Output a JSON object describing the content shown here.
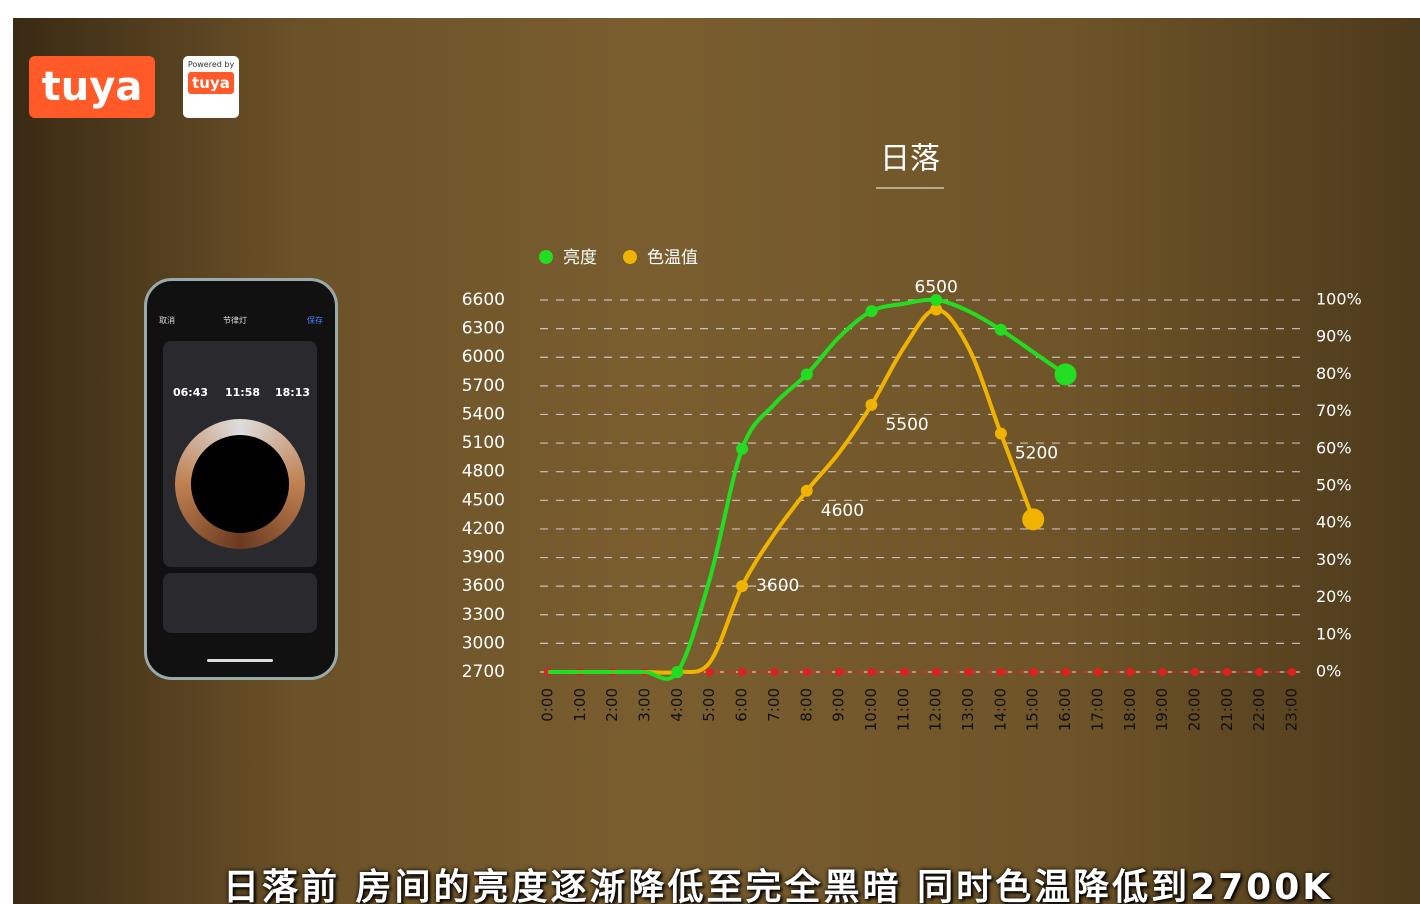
{
  "chart_data": {
    "type": "line",
    "title": "日落",
    "categories": [
      "0:00",
      "1:00",
      "2:00",
      "3:00",
      "4:00",
      "5:00",
      "6:00",
      "7:00",
      "8:00",
      "9:00",
      "10:00",
      "11:00",
      "12:00",
      "13:00",
      "14:00",
      "15:00",
      "16:00",
      "17:00",
      "18:00",
      "19:00",
      "20:00",
      "21:00",
      "22:00",
      "23:00"
    ],
    "series": [
      {
        "name": "亮度",
        "color": "#22dd22",
        "axis": "y2",
        "values": [
          0,
          0,
          0,
          0,
          0,
          25,
          60,
          72,
          80,
          90,
          97,
          99,
          100,
          97,
          92,
          86,
          80,
          null,
          null,
          null,
          null,
          null,
          null,
          null
        ]
      },
      {
        "name": "色温值",
        "color": "#f0b400",
        "values": [
          2700,
          2700,
          2700,
          2700,
          2700,
          2800,
          3600,
          4150,
          4600,
          5000,
          5500,
          6100,
          6500,
          6100,
          5200,
          4300,
          null,
          null,
          null,
          null,
          null,
          null,
          null,
          null
        ],
        "value_labels": [
          null,
          null,
          null,
          null,
          null,
          null,
          "3600",
          null,
          "4600",
          null,
          "5500",
          null,
          "6500",
          null,
          "5200",
          null,
          null,
          null,
          null,
          null,
          null,
          null,
          null,
          null
        ]
      }
    ],
    "ylim": [
      2700,
      6600
    ],
    "yticks": [
      2700,
      3000,
      3300,
      3600,
      3900,
      4200,
      4500,
      4800,
      5100,
      5400,
      5700,
      6000,
      6300,
      6600
    ],
    "y2lim": [
      0,
      100
    ],
    "y2ticks": [
      {
        "value": 0,
        "label": "0%"
      },
      {
        "value": 10,
        "label": "10%"
      },
      {
        "value": 20,
        "label": "20%"
      },
      {
        "value": 30,
        "label": "30%"
      },
      {
        "value": 40,
        "label": "40%"
      },
      {
        "value": 50,
        "label": "50%"
      },
      {
        "value": 60,
        "label": "60%"
      },
      {
        "value": 70,
        "label": "70%"
      },
      {
        "value": 80,
        "label": "80%"
      },
      {
        "value": 90,
        "label": "90%"
      },
      {
        "value": 100,
        "label": "100%"
      }
    ],
    "grid": true
  },
  "caption": "日落前 房间的亮度逐渐降低至完全黑暗 同时色温降低到2700K",
  "logo": "tuya",
  "powered": {
    "line": "Powered by",
    "brand": "tuya"
  },
  "phone": {
    "left": "取消",
    "title": "节律灯",
    "right": "保存",
    "times": [
      "06:43",
      "11:58",
      "18:13"
    ]
  }
}
